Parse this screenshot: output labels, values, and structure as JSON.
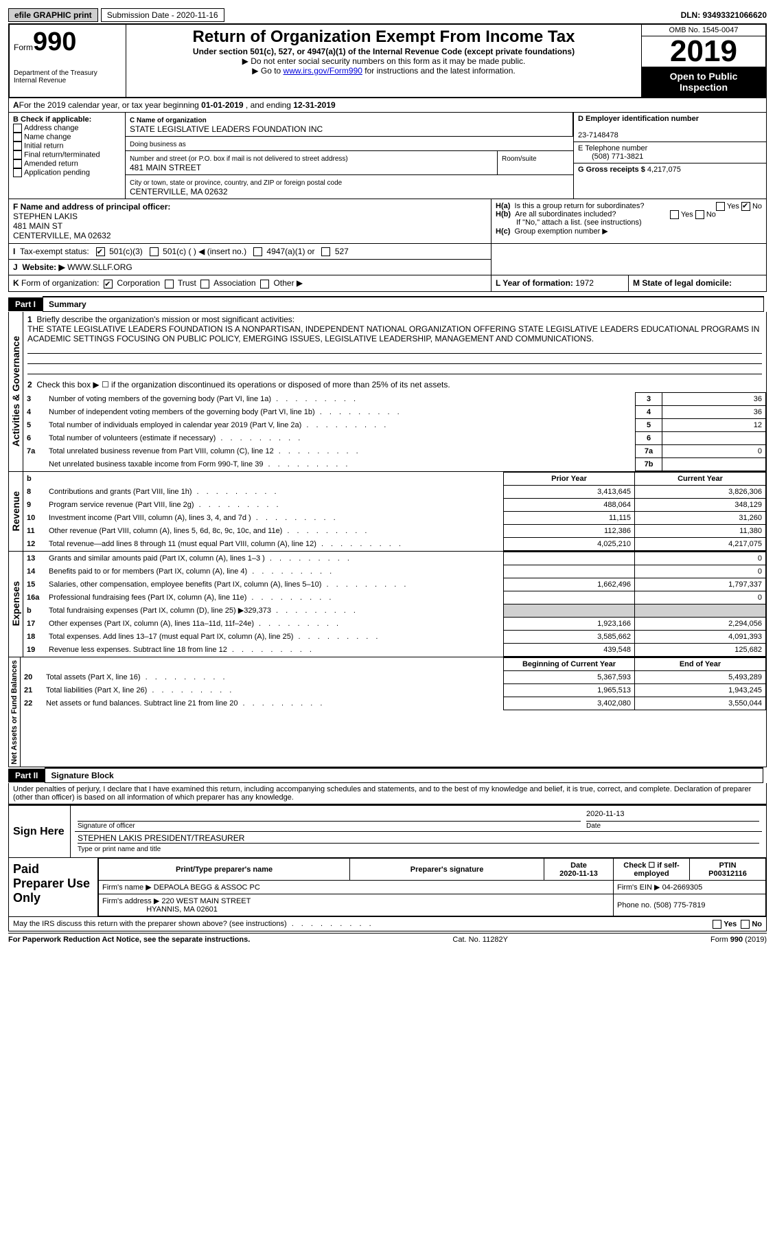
{
  "topbar": {
    "efile": "efile GRAPHIC print",
    "submission_label": "Submission Date - 2020-11-16",
    "dln": "DLN: 93493321066620"
  },
  "header": {
    "form_prefix": "Form",
    "form_number": "990",
    "dept": "Department of the Treasury\nInternal Revenue",
    "title": "Return of Organization Exempt From Income Tax",
    "subtitle": "Under section 501(c), 527, or 4947(a)(1) of the Internal Revenue Code (except private foundations)",
    "line1": "Do not enter social security numbers on this form as it may be made public.",
    "line2_pre": "Go to ",
    "line2_link": "www.irs.gov/Form990",
    "line2_post": " for instructions and the latest information.",
    "omb": "OMB No. 1545-0047",
    "year": "2019",
    "open_public": "Open to Public Inspection"
  },
  "period": {
    "text_pre": "For the 2019 calendar year, or tax year beginning ",
    "begin": "01-01-2019",
    "mid": " , and ending ",
    "end": "12-31-2019"
  },
  "boxB": {
    "label": "B Check if applicable:",
    "items": [
      "Address change",
      "Name change",
      "Initial return",
      "Final return/terminated",
      "Amended return",
      "Application pending"
    ]
  },
  "boxC": {
    "label": "C Name of organization",
    "name": "STATE LEGISLATIVE LEADERS FOUNDATION INC",
    "dba_label": "Doing business as",
    "addr_label": "Number and street (or P.O. box if mail is not delivered to street address)",
    "room_label": "Room/suite",
    "street": "481 MAIN STREET",
    "city_label": "City or town, state or province, country, and ZIP or foreign postal code",
    "city": "CENTERVILLE, MA  02632"
  },
  "boxD": {
    "label": "D Employer identification number",
    "value": "23-7148478"
  },
  "boxE": {
    "label": "E Telephone number",
    "value": "(508) 771-3821"
  },
  "boxG": {
    "label": "G Gross receipts $",
    "value": "4,217,075"
  },
  "boxF": {
    "label": "F  Name and address of principal officer:",
    "name": "STEPHEN LAKIS",
    "street": "481 MAIN ST",
    "city": "CENTERVILLE, MA  02632"
  },
  "boxH": {
    "a_label": "Is this a group return for subordinates?",
    "a_yes": "Yes",
    "a_no": "No",
    "b_label": "Are all subordinates included?",
    "b_note": "If \"No,\" attach a list. (see instructions)",
    "c_label": "Group exemption number ▶",
    "ha": "H(a)",
    "hb": "H(b)",
    "hc": "H(c)"
  },
  "boxI": {
    "label": "Tax-exempt status:",
    "opts": [
      "501(c)(3)",
      "501(c) (  ) ◀ (insert no.)",
      "4947(a)(1) or",
      "527"
    ]
  },
  "boxJ": {
    "label": "Website: ▶",
    "value": "WWW.SLLF.ORG"
  },
  "boxK": {
    "label": "Form of organization:",
    "opts": [
      "Corporation",
      "Trust",
      "Association",
      "Other ▶"
    ]
  },
  "boxL": {
    "label": "L Year of formation:",
    "value": "1972"
  },
  "boxM": {
    "label": "M State of legal domicile:",
    "value": ""
  },
  "part1": {
    "bar": "Part I",
    "title": "Summary",
    "q1_label": "Briefly describe the organization's mission or most significant activities:",
    "q1_text": "THE STATE LEGISLATIVE LEADERS FOUNDATION IS A NONPARTISAN, INDEPENDENT NATIONAL ORGANIZATION OFFERING STATE LEGISLATIVE LEADERS EDUCATIONAL PROGRAMS IN ACADEMIC SETTINGS FOCUSING ON PUBLIC POLICY, EMERGING ISSUES, LEGISLATIVE LEADERSHIP, MANAGEMENT AND COMMUNICATIONS.",
    "q2": "Check this box ▶ ☐  if the organization discontinued its operations or disposed of more than 25% of its net assets.",
    "vlabels": {
      "gov": "Activities & Governance",
      "rev": "Revenue",
      "exp": "Expenses",
      "net": "Net Assets or Fund Balances"
    },
    "gov_rows": [
      {
        "n": "3",
        "desc": "Number of voting members of the governing body (Part VI, line 1a)",
        "box": "3",
        "val": "36"
      },
      {
        "n": "4",
        "desc": "Number of independent voting members of the governing body (Part VI, line 1b)",
        "box": "4",
        "val": "36"
      },
      {
        "n": "5",
        "desc": "Total number of individuals employed in calendar year 2019 (Part V, line 2a)",
        "box": "5",
        "val": "12"
      },
      {
        "n": "6",
        "desc": "Total number of volunteers (estimate if necessary)",
        "box": "6",
        "val": ""
      },
      {
        "n": "7a",
        "desc": "Total unrelated business revenue from Part VIII, column (C), line 12",
        "box": "7a",
        "val": "0"
      },
      {
        "n": "",
        "desc": "Net unrelated business taxable income from Form 990-T, line 39",
        "box": "7b",
        "val": ""
      }
    ],
    "col_prior": "Prior Year",
    "col_current": "Current Year",
    "rev_rows": [
      {
        "n": "8",
        "desc": "Contributions and grants (Part VIII, line 1h)",
        "p": "3,413,645",
        "c": "3,826,306"
      },
      {
        "n": "9",
        "desc": "Program service revenue (Part VIII, line 2g)",
        "p": "488,064",
        "c": "348,129"
      },
      {
        "n": "10",
        "desc": "Investment income (Part VIII, column (A), lines 3, 4, and 7d )",
        "p": "11,115",
        "c": "31,260"
      },
      {
        "n": "11",
        "desc": "Other revenue (Part VIII, column (A), lines 5, 6d, 8c, 9c, 10c, and 11e)",
        "p": "112,386",
        "c": "11,380"
      },
      {
        "n": "12",
        "desc": "Total revenue—add lines 8 through 11 (must equal Part VIII, column (A), line 12)",
        "p": "4,025,210",
        "c": "4,217,075"
      }
    ],
    "exp_rows": [
      {
        "n": "13",
        "desc": "Grants and similar amounts paid (Part IX, column (A), lines 1–3 )",
        "p": "",
        "c": "0"
      },
      {
        "n": "14",
        "desc": "Benefits paid to or for members (Part IX, column (A), line 4)",
        "p": "",
        "c": "0"
      },
      {
        "n": "15",
        "desc": "Salaries, other compensation, employee benefits (Part IX, column (A), lines 5–10)",
        "p": "1,662,496",
        "c": "1,797,337"
      },
      {
        "n": "16a",
        "desc": "Professional fundraising fees (Part IX, column (A), line 11e)",
        "p": "",
        "c": "0"
      },
      {
        "n": "b",
        "desc": "Total fundraising expenses (Part IX, column (D), line 25) ▶329,373",
        "p": "shade",
        "c": "shade"
      },
      {
        "n": "17",
        "desc": "Other expenses (Part IX, column (A), lines 11a–11d, 11f–24e)",
        "p": "1,923,166",
        "c": "2,294,056"
      },
      {
        "n": "18",
        "desc": "Total expenses. Add lines 13–17 (must equal Part IX, column (A), line 25)",
        "p": "3,585,662",
        "c": "4,091,393"
      },
      {
        "n": "19",
        "desc": "Revenue less expenses. Subtract line 18 from line 12",
        "p": "439,548",
        "c": "125,682"
      }
    ],
    "net_header": {
      "p": "Beginning of Current Year",
      "c": "End of Year"
    },
    "net_rows": [
      {
        "n": "20",
        "desc": "Total assets (Part X, line 16)",
        "p": "5,367,593",
        "c": "5,493,289"
      },
      {
        "n": "21",
        "desc": "Total liabilities (Part X, line 26)",
        "p": "1,965,513",
        "c": "1,943,245"
      },
      {
        "n": "22",
        "desc": "Net assets or fund balances. Subtract line 21 from line 20",
        "p": "3,402,080",
        "c": "3,550,044"
      }
    ]
  },
  "part2": {
    "bar": "Part II",
    "title": "Signature Block",
    "declaration": "Under penalties of perjury, I declare that I have examined this return, including accompanying schedules and statements, and to the best of my knowledge and belief, it is true, correct, and complete. Declaration of preparer (other than officer) is based on all information of which preparer has any knowledge.",
    "sign_here": "Sign Here",
    "sig_officer": "Signature of officer",
    "sig_date_label": "Date",
    "sig_date": "2020-11-13",
    "officer_name": "STEPHEN LAKIS  PRESIDENT/TREASURER",
    "officer_sub": "Type or print name and title",
    "paid_label": "Paid Preparer Use Only",
    "prep_cols": [
      "Print/Type preparer's name",
      "Preparer's signature",
      "Date",
      "Check ☐ if self-employed",
      "PTIN"
    ],
    "prep_date": "2020-11-13",
    "prep_ptin": "P00312116",
    "firm_name_label": "Firm's name    ▶",
    "firm_name": "DEPAOLA BEGG & ASSOC PC",
    "firm_ein_label": "Firm's EIN ▶",
    "firm_ein": "04-2669305",
    "firm_addr_label": "Firm's address ▶",
    "firm_addr1": "220 WEST MAIN STREET",
    "firm_addr2": "HYANNIS, MA  02601",
    "phone_label": "Phone no.",
    "phone": "(508) 775-7819",
    "discuss": "May the IRS discuss this return with the preparer shown above? (see instructions)",
    "yes": "Yes",
    "no": "No"
  },
  "footer": {
    "left": "For Paperwork Reduction Act Notice, see the separate instructions.",
    "mid": "Cat. No. 11282Y",
    "right": "Form 990 (2019)"
  }
}
